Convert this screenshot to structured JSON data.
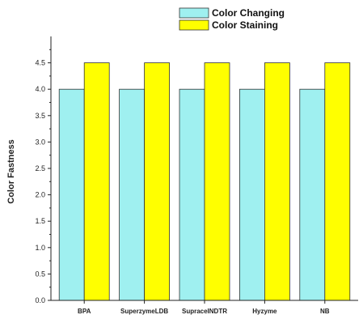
{
  "chart_data": {
    "type": "bar",
    "categories": [
      "BPA",
      "SuperzymeLDB",
      "SupraceINDTR",
      "Hyzyme",
      "NB"
    ],
    "series": [
      {
        "name": "Color Changing",
        "values": [
          4.0,
          4.0,
          4.0,
          4.0,
          4.0
        ],
        "color": "#9ff0f0"
      },
      {
        "name": "Color Staining",
        "values": [
          4.5,
          4.5,
          4.5,
          4.5,
          4.5
        ],
        "color": "#ffff00"
      }
    ],
    "xlabel": "",
    "ylabel": "Color Fastness",
    "ylim": [
      0,
      5
    ],
    "yticks": [
      "0.0",
      "0.5",
      "1.0",
      "1.5",
      "2.0",
      "2.5",
      "3.0",
      "3.5",
      "4.0",
      "4.5"
    ],
    "legend_position": "top-right",
    "grid": false
  }
}
